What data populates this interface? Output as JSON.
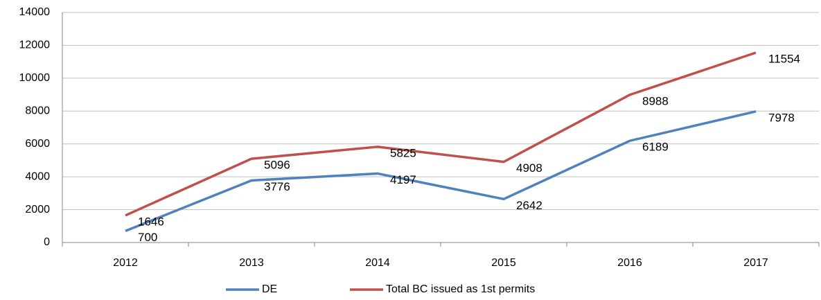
{
  "chart_data": {
    "type": "line",
    "categories": [
      "2012",
      "2013",
      "2014",
      "2015",
      "2016",
      "2017"
    ],
    "series": [
      {
        "name": "DE",
        "color": "#4f81bd",
        "values": [
          700,
          3776,
          4197,
          2642,
          6189,
          7978
        ]
      },
      {
        "name": "Total BC issued as 1st permits",
        "color": "#c0504d",
        "values": [
          1646,
          5096,
          5825,
          4908,
          8988,
          11554
        ]
      }
    ],
    "ylim": [
      0,
      14000
    ],
    "yticks": [
      0,
      2000,
      4000,
      6000,
      8000,
      10000,
      12000,
      14000
    ],
    "grid": true,
    "legend": "bottom"
  }
}
